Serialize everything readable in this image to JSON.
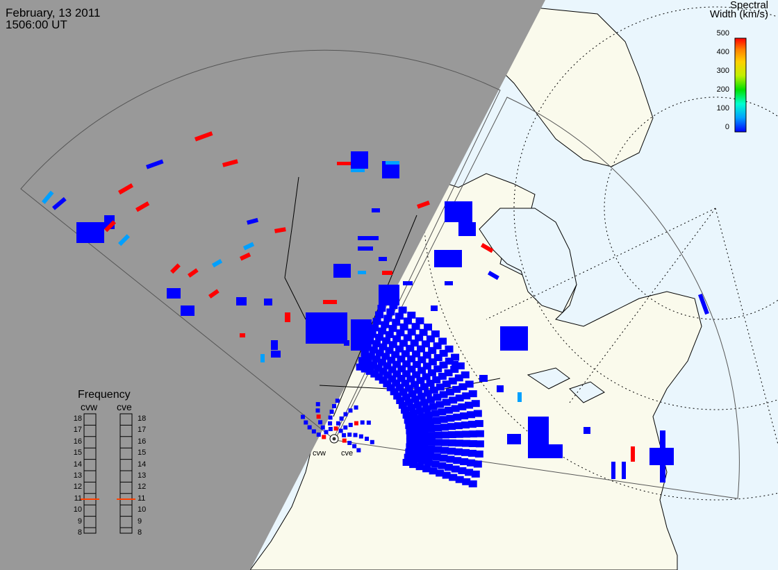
{
  "header": {
    "date": "February, 13 2011",
    "time": "1506:00 UT"
  },
  "colorbar": {
    "title_line1": "Spectral",
    "title_line2": "Width (km/s)",
    "ticks": [
      "500",
      "400",
      "300",
      "200",
      "100",
      "0"
    ],
    "range": [
      0,
      500
    ],
    "colors": [
      "#0000ff",
      "#00a0ff",
      "#00ffd0",
      "#00e000",
      "#c0f000",
      "#ffd000",
      "#ff8000",
      "#ff0000"
    ]
  },
  "frequency": {
    "title": "Frequency",
    "radars": [
      {
        "name": "cvw",
        "selected_mhz": 11
      },
      {
        "name": "cve",
        "selected_mhz": 11
      }
    ],
    "scale": [
      "18",
      "17",
      "16",
      "15",
      "14",
      "13",
      "12",
      "11",
      "10",
      "9",
      "8"
    ],
    "marker_color": "#ff4000"
  },
  "sites": [
    "cvw",
    "cve"
  ],
  "colors": {
    "night": "#999999",
    "land": "#fafaec",
    "ocean": "#eaf6fd",
    "low_width": "#0000ff",
    "mid_width": "#00a0ff",
    "high_width": "#ff0000"
  }
}
